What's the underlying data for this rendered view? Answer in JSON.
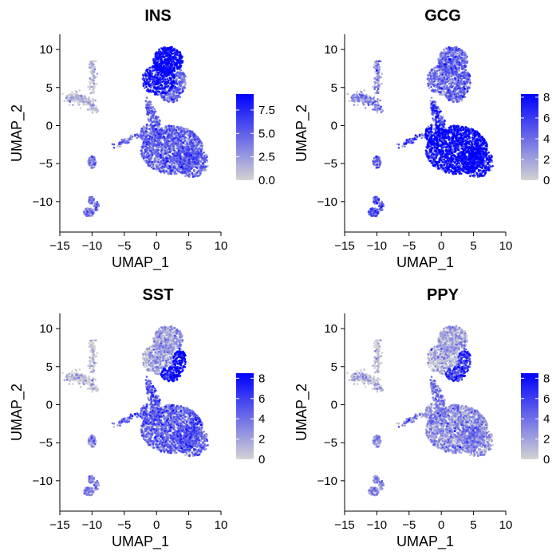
{
  "chart_data": [
    {
      "type": "scatter",
      "title": "INS",
      "xlabel": "UMAP_1",
      "ylabel": "UMAP_2",
      "xlim": [
        -15,
        10
      ],
      "ylim": [
        -14,
        12
      ],
      "xticks": [
        "−15",
        "−10",
        "−5",
        "0",
        "5",
        "10"
      ],
      "yticks": [
        "10",
        "5",
        "0",
        "−5",
        "−10"
      ],
      "colorbar": {
        "min": 0,
        "max": 9.2,
        "ticks": [
          "0.0",
          "2.5",
          "5.0",
          "7.5"
        ],
        "low_color": "#d3d3d3",
        "high_color": "#0000ff"
      },
      "expression_by_cluster": {
        "beta": 8.2,
        "alpha": 4.2,
        "delta": 3.5,
        "bridge": 4.0,
        "small_left": 0.3,
        "small_low": 3.0
      }
    },
    {
      "type": "scatter",
      "title": "GCG",
      "xlabel": "UMAP_1",
      "ylabel": "UMAP_2",
      "xlim": [
        -15,
        10
      ],
      "ylim": [
        -14,
        12
      ],
      "xticks": [
        "−15",
        "−10",
        "−5",
        "0",
        "5",
        "10"
      ],
      "yticks": [
        "10",
        "5",
        "0",
        "−5",
        "−10"
      ],
      "colorbar": {
        "min": 0,
        "max": 8.3,
        "ticks": [
          "0",
          "2",
          "4",
          "6",
          "8"
        ],
        "low_color": "#d3d3d3",
        "high_color": "#0000ff"
      },
      "expression_by_cluster": {
        "beta": 3.2,
        "alpha": 7.4,
        "delta": 3.8,
        "bridge": 5.5,
        "small_left": 2.0,
        "small_low": 4.0
      }
    },
    {
      "type": "scatter",
      "title": "SST",
      "xlabel": "UMAP_1",
      "ylabel": "UMAP_2",
      "xlim": [
        -15,
        10
      ],
      "ylim": [
        -14,
        12
      ],
      "xticks": [
        "−15",
        "−10",
        "−5",
        "0",
        "5",
        "10"
      ],
      "yticks": [
        "10",
        "5",
        "0",
        "−5",
        "−10"
      ],
      "colorbar": {
        "min": 0,
        "max": 8.5,
        "ticks": [
          "0",
          "2",
          "4",
          "6",
          "8"
        ],
        "low_color": "#d3d3d3",
        "high_color": "#0000ff"
      },
      "expression_by_cluster": {
        "beta": 1.2,
        "alpha": 3.8,
        "delta": 7.5,
        "bridge": 4.5,
        "small_left": 0.2,
        "small_low": 2.5
      }
    },
    {
      "type": "scatter",
      "title": "PPY",
      "xlabel": "UMAP_1",
      "ylabel": "UMAP_2",
      "xlim": [
        -15,
        10
      ],
      "ylim": [
        -14,
        12
      ],
      "xticks": [
        "−15",
        "−10",
        "−5",
        "0",
        "5",
        "10"
      ],
      "yticks": [
        "10",
        "5",
        "0",
        "−5",
        "−10"
      ],
      "colorbar": {
        "min": 0,
        "max": 8.5,
        "ticks": [
          "0",
          "2",
          "4",
          "6",
          "8"
        ],
        "low_color": "#d3d3d3",
        "high_color": "#0000ff"
      },
      "expression_by_cluster": {
        "beta": 0.6,
        "alpha": 2.0,
        "delta": 5.5,
        "bridge": 3.0,
        "small_left": 0.2,
        "small_low": 2.0
      }
    }
  ]
}
